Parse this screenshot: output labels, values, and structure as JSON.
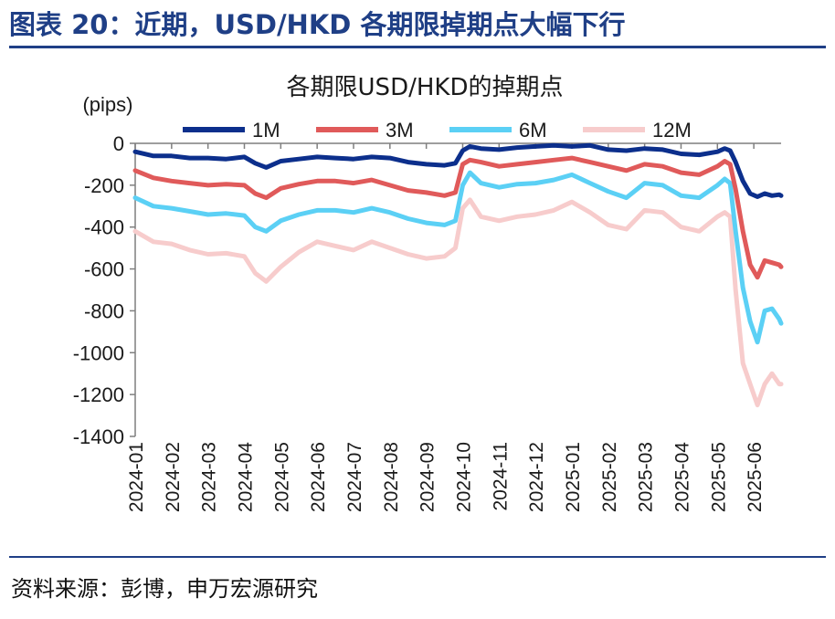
{
  "figure_title": "图表 20：近期，USD/HKD 各期限掉期点大幅下行",
  "source_note": "资料来源：彭博，申万宏源研究",
  "colors": {
    "accent": "#1f3f86",
    "s1M": "#0c2f8c",
    "s3M": "#e05a5a",
    "s6M": "#5bd0f5",
    "s12M": "#f7cccc"
  },
  "chart_data": {
    "type": "line",
    "title": "各期限USD/HKD的掉期点",
    "ylabel": "(pips)",
    "xlabel": "",
    "ylim": [
      -1400,
      0
    ],
    "yticks": [
      "0",
      "-200",
      "-400",
      "-600",
      "-800",
      "-1000",
      "-1200",
      "-1400"
    ],
    "xticks": [
      "2024-01",
      "2024-02",
      "2024-03",
      "2024-04",
      "2024-05",
      "2024-06",
      "2024-07",
      "2024-08",
      "2024-09",
      "2024-10",
      "2024-11",
      "2024-12",
      "2025-01",
      "2025-02",
      "2025-03",
      "2025-04",
      "2025-05",
      "2025-06"
    ],
    "x_index_range": [
      0,
      17.75
    ],
    "legend_position": "top",
    "series": [
      {
        "name": "1M",
        "color": "#0c2f8c",
        "points": [
          [
            0,
            -40
          ],
          [
            0.5,
            -60
          ],
          [
            1,
            -60
          ],
          [
            1.5,
            -70
          ],
          [
            2,
            -70
          ],
          [
            2.5,
            -75
          ],
          [
            3,
            -65
          ],
          [
            3.3,
            -95
          ],
          [
            3.6,
            -115
          ],
          [
            4,
            -85
          ],
          [
            4.5,
            -75
          ],
          [
            5,
            -65
          ],
          [
            5.5,
            -70
          ],
          [
            6,
            -75
          ],
          [
            6.5,
            -65
          ],
          [
            7,
            -70
          ],
          [
            7.5,
            -90
          ],
          [
            8,
            -100
          ],
          [
            8.5,
            -105
          ],
          [
            8.8,
            -95
          ],
          [
            9,
            -35
          ],
          [
            9.2,
            -15
          ],
          [
            9.5,
            -25
          ],
          [
            10,
            -30
          ],
          [
            10.5,
            -20
          ],
          [
            11,
            -15
          ],
          [
            11.5,
            -10
          ],
          [
            12,
            -15
          ],
          [
            12.5,
            -10
          ],
          [
            13,
            -30
          ],
          [
            13.5,
            -35
          ],
          [
            14,
            -25
          ],
          [
            14.5,
            -30
          ],
          [
            15,
            -50
          ],
          [
            15.5,
            -55
          ],
          [
            16,
            -40
          ],
          [
            16.2,
            -25
          ],
          [
            16.35,
            -35
          ],
          [
            16.5,
            -90
          ],
          [
            16.7,
            -180
          ],
          [
            16.9,
            -240
          ],
          [
            17.1,
            -255
          ],
          [
            17.3,
            -240
          ],
          [
            17.5,
            -250
          ],
          [
            17.7,
            -245
          ],
          [
            17.75,
            -250
          ]
        ]
      },
      {
        "name": "3M",
        "color": "#e05a5a",
        "points": [
          [
            0,
            -130
          ],
          [
            0.5,
            -165
          ],
          [
            1,
            -180
          ],
          [
            1.5,
            -190
          ],
          [
            2,
            -200
          ],
          [
            2.5,
            -195
          ],
          [
            3,
            -200
          ],
          [
            3.3,
            -240
          ],
          [
            3.6,
            -260
          ],
          [
            4,
            -215
          ],
          [
            4.5,
            -195
          ],
          [
            5,
            -180
          ],
          [
            5.5,
            -180
          ],
          [
            6,
            -190
          ],
          [
            6.5,
            -175
          ],
          [
            7,
            -200
          ],
          [
            7.5,
            -225
          ],
          [
            8,
            -235
          ],
          [
            8.5,
            -250
          ],
          [
            8.8,
            -235
          ],
          [
            9,
            -100
          ],
          [
            9.2,
            -80
          ],
          [
            9.5,
            -90
          ],
          [
            10,
            -110
          ],
          [
            10.5,
            -100
          ],
          [
            11,
            -90
          ],
          [
            11.5,
            -80
          ],
          [
            12,
            -70
          ],
          [
            12.5,
            -90
          ],
          [
            13,
            -110
          ],
          [
            13.5,
            -130
          ],
          [
            14,
            -100
          ],
          [
            14.5,
            -110
          ],
          [
            15,
            -140
          ],
          [
            15.5,
            -150
          ],
          [
            16,
            -110
          ],
          [
            16.2,
            -85
          ],
          [
            16.35,
            -100
          ],
          [
            16.5,
            -220
          ],
          [
            16.7,
            -420
          ],
          [
            16.9,
            -580
          ],
          [
            17.1,
            -640
          ],
          [
            17.3,
            -560
          ],
          [
            17.5,
            -570
          ],
          [
            17.7,
            -580
          ],
          [
            17.75,
            -590
          ]
        ]
      },
      {
        "name": "6M",
        "color": "#5bd0f5",
        "points": [
          [
            0,
            -260
          ],
          [
            0.5,
            -300
          ],
          [
            1,
            -310
          ],
          [
            1.5,
            -325
          ],
          [
            2,
            -340
          ],
          [
            2.5,
            -335
          ],
          [
            3,
            -345
          ],
          [
            3.3,
            -400
          ],
          [
            3.6,
            -420
          ],
          [
            4,
            -370
          ],
          [
            4.5,
            -340
          ],
          [
            5,
            -320
          ],
          [
            5.5,
            -320
          ],
          [
            6,
            -330
          ],
          [
            6.5,
            -310
          ],
          [
            7,
            -330
          ],
          [
            7.5,
            -360
          ],
          [
            8,
            -380
          ],
          [
            8.5,
            -390
          ],
          [
            8.8,
            -370
          ],
          [
            9,
            -200
          ],
          [
            9.2,
            -140
          ],
          [
            9.5,
            -190
          ],
          [
            10,
            -210
          ],
          [
            10.5,
            -195
          ],
          [
            11,
            -190
          ],
          [
            11.5,
            -175
          ],
          [
            12,
            -150
          ],
          [
            12.5,
            -190
          ],
          [
            13,
            -230
          ],
          [
            13.5,
            -260
          ],
          [
            14,
            -190
          ],
          [
            14.5,
            -200
          ],
          [
            15,
            -250
          ],
          [
            15.5,
            -260
          ],
          [
            16,
            -200
          ],
          [
            16.2,
            -170
          ],
          [
            16.35,
            -190
          ],
          [
            16.5,
            -420
          ],
          [
            16.7,
            -690
          ],
          [
            16.9,
            -850
          ],
          [
            17.1,
            -950
          ],
          [
            17.3,
            -800
          ],
          [
            17.5,
            -790
          ],
          [
            17.7,
            -840
          ],
          [
            17.75,
            -860
          ]
        ]
      },
      {
        "name": "12M",
        "color": "#f7cccc",
        "points": [
          [
            0,
            -420
          ],
          [
            0.5,
            -470
          ],
          [
            1,
            -480
          ],
          [
            1.5,
            -510
          ],
          [
            2,
            -530
          ],
          [
            2.5,
            -525
          ],
          [
            3,
            -540
          ],
          [
            3.3,
            -620
          ],
          [
            3.6,
            -660
          ],
          [
            4,
            -590
          ],
          [
            4.5,
            -520
          ],
          [
            5,
            -470
          ],
          [
            5.5,
            -490
          ],
          [
            6,
            -510
          ],
          [
            6.5,
            -470
          ],
          [
            7,
            -500
          ],
          [
            7.5,
            -530
          ],
          [
            8,
            -550
          ],
          [
            8.5,
            -540
          ],
          [
            8.8,
            -500
          ],
          [
            9,
            -310
          ],
          [
            9.2,
            -270
          ],
          [
            9.5,
            -350
          ],
          [
            10,
            -370
          ],
          [
            10.5,
            -350
          ],
          [
            11,
            -340
          ],
          [
            11.5,
            -320
          ],
          [
            12,
            -280
          ],
          [
            12.5,
            -330
          ],
          [
            13,
            -390
          ],
          [
            13.5,
            -410
          ],
          [
            14,
            -320
          ],
          [
            14.5,
            -330
          ],
          [
            15,
            -400
          ],
          [
            15.5,
            -420
          ],
          [
            16,
            -350
          ],
          [
            16.2,
            -330
          ],
          [
            16.35,
            -350
          ],
          [
            16.5,
            -700
          ],
          [
            16.7,
            -1050
          ],
          [
            16.9,
            -1150
          ],
          [
            17.1,
            -1250
          ],
          [
            17.3,
            -1150
          ],
          [
            17.5,
            -1100
          ],
          [
            17.7,
            -1150
          ],
          [
            17.75,
            -1150
          ]
        ]
      }
    ]
  }
}
